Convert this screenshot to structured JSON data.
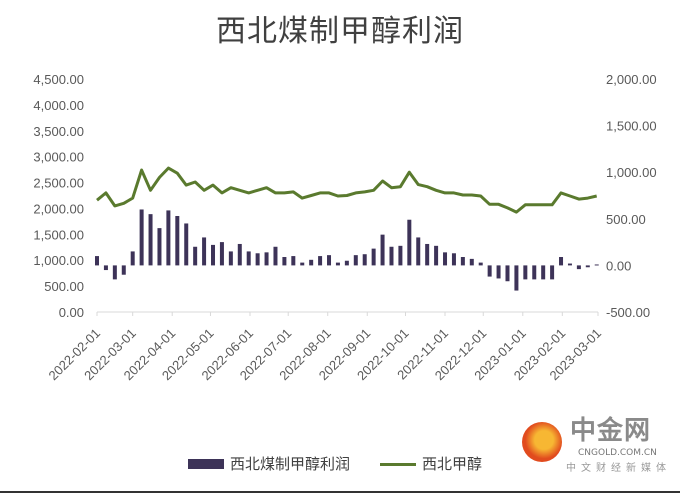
{
  "chart_data": {
    "type": "bar+line",
    "title": "西北煤制甲醇利润",
    "left_axis": {
      "min": 0,
      "max": 4500,
      "ticks": [
        "0.00",
        "500.00",
        "1,000.00",
        "1,500.00",
        "2,000.00",
        "2,500.00",
        "3,000.00",
        "3,500.00",
        "4,000.00",
        "4,500.00"
      ]
    },
    "right_axis": {
      "min": -500,
      "max": 2000,
      "ticks": [
        "-500.00",
        "0.00",
        "500.00",
        "1,000.00",
        "1,500.00",
        "2,000.00"
      ]
    },
    "x_ticks": [
      "2022-02-01",
      "2022-03-01",
      "2022-04-01",
      "2022-05-01",
      "2022-06-01",
      "2022-07-01",
      "2022-08-01",
      "2022-09-01",
      "2022-10-01",
      "2022-11-01",
      "2022-12-01",
      "2023-01-01",
      "2023-02-01",
      "2023-03-01"
    ],
    "grid": false,
    "legend_position": "bottom",
    "dates": [
      "2022-02-01",
      "2022-02-08",
      "2022-02-15",
      "2022-02-22",
      "2022-03-01",
      "2022-03-08",
      "2022-03-15",
      "2022-03-22",
      "2022-03-29",
      "2022-04-05",
      "2022-04-12",
      "2022-04-19",
      "2022-04-26",
      "2022-05-03",
      "2022-05-10",
      "2022-05-17",
      "2022-05-24",
      "2022-05-31",
      "2022-06-07",
      "2022-06-14",
      "2022-06-21",
      "2022-06-28",
      "2022-07-05",
      "2022-07-12",
      "2022-07-19",
      "2022-07-26",
      "2022-08-02",
      "2022-08-09",
      "2022-08-16",
      "2022-08-23",
      "2022-08-30",
      "2022-09-06",
      "2022-09-13",
      "2022-09-20",
      "2022-09-27",
      "2022-10-04",
      "2022-10-11",
      "2022-10-18",
      "2022-10-25",
      "2022-11-01",
      "2022-11-08",
      "2022-11-15",
      "2022-11-22",
      "2022-11-29",
      "2022-12-06",
      "2022-12-13",
      "2022-12-20",
      "2022-12-27",
      "2023-01-03",
      "2023-01-10",
      "2023-01-17",
      "2023-01-24",
      "2023-01-31",
      "2023-02-07",
      "2023-02-14",
      "2023-02-21",
      "2023-02-28"
    ],
    "series": [
      {
        "name": "西北煤制甲醇利润",
        "type": "bar",
        "axis": "right",
        "color": "#3d3358",
        "values": [
          100,
          -50,
          -150,
          -100,
          150,
          600,
          550,
          400,
          590,
          530,
          450,
          200,
          300,
          220,
          250,
          150,
          230,
          150,
          130,
          140,
          200,
          90,
          100,
          30,
          60,
          100,
          110,
          30,
          50,
          110,
          120,
          180,
          330,
          200,
          210,
          490,
          300,
          230,
          210,
          140,
          130,
          90,
          70,
          30,
          -120,
          -140,
          -170,
          -270,
          -150,
          -150,
          -150,
          -150,
          90,
          20,
          -40,
          -20,
          10
        ]
      },
      {
        "name": "西北甲醇",
        "type": "line",
        "axis": "left",
        "color": "#5a7a2e",
        "values": [
          2160,
          2300,
          2050,
          2100,
          2200,
          2740,
          2350,
          2600,
          2780,
          2680,
          2450,
          2510,
          2350,
          2450,
          2300,
          2400,
          2350,
          2300,
          2350,
          2400,
          2300,
          2300,
          2320,
          2200,
          2250,
          2300,
          2300,
          2240,
          2250,
          2300,
          2320,
          2350,
          2530,
          2400,
          2420,
          2700,
          2460,
          2420,
          2350,
          2300,
          2300,
          2260,
          2260,
          2240,
          2080,
          2080,
          2010,
          1930,
          2070,
          2070,
          2070,
          2070,
          2300,
          2240,
          2180,
          2200,
          2240
        ]
      }
    ]
  },
  "logo": {
    "name": "中金网",
    "domain": "CNGOLD.COM.CN",
    "tagline": "中文财经新媒体"
  }
}
